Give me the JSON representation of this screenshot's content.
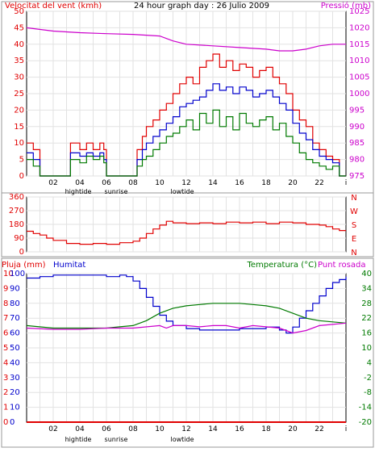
{
  "colors": {
    "frame": "#888888",
    "grid": "#e2e2e2",
    "red": "#e00000",
    "blue": "#0000cc",
    "green": "#007a00",
    "magenta": "#cc00cc",
    "black": "#000000"
  },
  "x_tick_labels": [
    "02",
    "04",
    "06",
    "08",
    "10",
    "12",
    "14",
    "16",
    "18",
    "20",
    "22",
    "i"
  ],
  "markers": {
    "hightide": "hightide",
    "sunrise": "sunrise",
    "lowtide": "lowtide"
  },
  "chart_data": [
    {
      "type": "line",
      "title": "24 hour graph day : 26 Julio 2009",
      "ylabel": "Velocitat del vent (kmh)",
      "ylabel_right": "Pressió (mb)",
      "x_unit": "hour",
      "xlim": [
        0,
        24
      ],
      "ylim": [
        0,
        50
      ],
      "y_ticks": [
        0,
        5,
        10,
        15,
        20,
        25,
        30,
        35,
        40,
        45,
        50
      ],
      "ylim_right": [
        975,
        1025
      ],
      "y_ticks_right": [
        975,
        980,
        985,
        990,
        995,
        1000,
        1005,
        1010,
        1015,
        1020,
        1025
      ],
      "series": [
        {
          "role": "wind_gust",
          "color": "#e00000",
          "axis": "left",
          "step": true,
          "x": [
            0,
            0.5,
            1,
            2,
            3,
            3.3,
            4,
            4.5,
            5,
            5.5,
            5.8,
            6,
            6.5,
            7,
            8,
            8.3,
            8.7,
            9,
            9.5,
            10,
            10.5,
            11,
            11.5,
            12,
            12.5,
            13,
            13.5,
            14,
            14.5,
            15,
            15.5,
            16,
            16.5,
            17,
            17.5,
            18,
            18.5,
            19,
            19.5,
            20,
            20.5,
            21,
            21.5,
            22,
            22.5,
            23,
            23.5
          ],
          "y": [
            10,
            8,
            0,
            0,
            0,
            10,
            8,
            10,
            8,
            10,
            8,
            0,
            0,
            0,
            0,
            8,
            12,
            15,
            17,
            20,
            22,
            25,
            28,
            30,
            28,
            33,
            35,
            37,
            33,
            35,
            32,
            34,
            33,
            30,
            32,
            33,
            30,
            28,
            25,
            20,
            17,
            15,
            10,
            8,
            6,
            5,
            0
          ]
        },
        {
          "role": "wind_avg",
          "color": "#0000cc",
          "axis": "left",
          "step": true,
          "x": [
            0,
            0.5,
            1,
            2,
            3,
            3.3,
            4,
            4.5,
            5,
            5.5,
            5.8,
            6,
            6.5,
            7,
            8,
            8.3,
            8.7,
            9,
            9.5,
            10,
            10.5,
            11,
            11.5,
            12,
            12.5,
            13,
            13.5,
            14,
            14.5,
            15,
            15.5,
            16,
            16.5,
            17,
            17.5,
            18,
            18.5,
            19,
            19.5,
            20,
            20.5,
            21,
            21.5,
            22,
            22.5,
            23,
            23.5
          ],
          "y": [
            7,
            5,
            0,
            0,
            0,
            7,
            6,
            7,
            6,
            7,
            5,
            0,
            0,
            0,
            0,
            5,
            8,
            10,
            12,
            14,
            16,
            18,
            21,
            22,
            23,
            24,
            26,
            28,
            26,
            27,
            25,
            27,
            26,
            24,
            25,
            26,
            24,
            22,
            20,
            16,
            13,
            11,
            8,
            6,
            5,
            4,
            0
          ]
        },
        {
          "role": "wind_min",
          "color": "#007a00",
          "axis": "left",
          "step": true,
          "x": [
            0,
            0.5,
            1,
            2,
            3,
            3.3,
            4,
            4.5,
            5,
            5.5,
            5.8,
            6,
            6.5,
            7,
            8,
            8.3,
            8.7,
            9,
            9.5,
            10,
            10.5,
            11,
            11.5,
            12,
            12.5,
            13,
            13.5,
            14,
            14.5,
            15,
            15.5,
            16,
            16.5,
            17,
            17.5,
            18,
            18.5,
            19,
            19.5,
            20,
            20.5,
            21,
            21.5,
            22,
            22.5,
            23,
            23.5
          ],
          "y": [
            5,
            3,
            0,
            0,
            0,
            5,
            4,
            6,
            5,
            6,
            4,
            0,
            0,
            0,
            0,
            3,
            5,
            6,
            8,
            10,
            12,
            13,
            15,
            17,
            14,
            19,
            16,
            20,
            15,
            18,
            14,
            19,
            16,
            15,
            17,
            18,
            14,
            16,
            12,
            10,
            7,
            5,
            4,
            3,
            2,
            3,
            0
          ]
        },
        {
          "role": "pressure",
          "color": "#cc00cc",
          "axis": "right",
          "step": false,
          "x": [
            0,
            2,
            4,
            6,
            8,
            10,
            11,
            12,
            14,
            16,
            18,
            19,
            20,
            21,
            22,
            23,
            24
          ],
          "y": [
            1020,
            1019,
            1018.5,
            1018.2,
            1018,
            1017.5,
            1016,
            1015,
            1014.5,
            1014,
            1013.5,
            1013,
            1013,
            1013.5,
            1014.5,
            1015,
            1015
          ]
        }
      ]
    },
    {
      "type": "line",
      "title": "",
      "x_unit": "hour",
      "xlim": [
        0,
        24
      ],
      "ylim": [
        0,
        360
      ],
      "y_ticks": [
        0,
        90,
        180,
        270,
        360
      ],
      "y_ticks_right": [
        "N",
        "E",
        "S",
        "W",
        "N"
      ],
      "series": [
        {
          "role": "wind_direction",
          "color": "#e00000",
          "step": true,
          "x": [
            0,
            0.5,
            1,
            1.5,
            2,
            3,
            4,
            5,
            6,
            7,
            8,
            8.5,
            9,
            9.5,
            10,
            10.5,
            11,
            12,
            13,
            14,
            15,
            16,
            17,
            18,
            19,
            20,
            21,
            22,
            22.5,
            23,
            23.5
          ],
          "y": [
            135,
            120,
            110,
            90,
            75,
            55,
            50,
            55,
            50,
            60,
            70,
            90,
            120,
            150,
            175,
            200,
            190,
            185,
            190,
            185,
            195,
            190,
            195,
            185,
            195,
            190,
            180,
            175,
            165,
            150,
            140
          ]
        }
      ]
    },
    {
      "type": "line",
      "title": "",
      "ylabel": "Pluja (mm)",
      "ylabel2": "Humitat",
      "ylabel_right": "Temperatura (°C)",
      "ylabel_right2": "Punt rosada",
      "x_unit": "hour",
      "xlim": [
        0,
        24
      ],
      "ylim": [
        0,
        10
      ],
      "y_ticks": [
        0,
        1,
        2,
        3,
        4,
        5,
        6,
        7,
        8,
        9,
        10
      ],
      "ylim_humidity": [
        0,
        100
      ],
      "y_ticks_humidity": [
        0,
        10,
        20,
        30,
        40,
        50,
        60,
        70,
        80,
        90,
        100
      ],
      "ylim_right": [
        -20,
        40
      ],
      "y_ticks_right": [
        -20,
        -14,
        -8,
        -2,
        4,
        10,
        16,
        22,
        28,
        34,
        40
      ],
      "series": [
        {
          "role": "humidity",
          "color": "#0000cc",
          "axis": "humidity",
          "step": true,
          "x": [
            0,
            1,
            2,
            3,
            4,
            5,
            6,
            7,
            7.5,
            8,
            8.5,
            9,
            9.5,
            10,
            10.5,
            11,
            12,
            13,
            14,
            15,
            16,
            17,
            18,
            19,
            19.5,
            20,
            20.5,
            21,
            21.5,
            22,
            22.5,
            23,
            23.5,
            24
          ],
          "y": [
            97,
            98,
            99,
            99,
            99,
            99,
            98,
            99,
            98,
            95,
            90,
            84,
            78,
            72,
            68,
            65,
            63,
            62,
            62,
            62,
            63,
            63,
            64,
            62,
            60,
            64,
            70,
            75,
            80,
            85,
            90,
            94,
            96,
            98
          ]
        },
        {
          "role": "temperature",
          "color": "#007a00",
          "axis": "right",
          "step": false,
          "x": [
            0,
            2,
            4,
            6,
            7,
            8,
            9,
            10,
            11,
            12,
            13,
            14,
            15,
            16,
            17,
            18,
            19,
            20,
            21,
            22,
            23,
            24
          ],
          "y": [
            19,
            18,
            18,
            18,
            18.5,
            19,
            21,
            24,
            26,
            27,
            27.5,
            28,
            28,
            28,
            27.5,
            27,
            26,
            24,
            22,
            21,
            20.5,
            20
          ]
        },
        {
          "role": "dew_point",
          "color": "#cc00cc",
          "axis": "right",
          "step": false,
          "x": [
            0,
            2,
            4,
            6,
            8,
            10,
            10.5,
            11,
            12,
            13,
            14,
            15,
            16,
            17,
            18,
            19,
            19.5,
            20,
            21,
            22,
            23,
            24
          ],
          "y": [
            18,
            17.5,
            17.5,
            18,
            18,
            19,
            18,
            19,
            19,
            18.5,
            19,
            19,
            18,
            19,
            18.5,
            18,
            17,
            16,
            17,
            19,
            19.5,
            20
          ]
        },
        {
          "role": "rain",
          "color": "#e00000",
          "axis": "left",
          "step": false,
          "x": [
            0,
            24
          ],
          "y": [
            0,
            0
          ]
        }
      ]
    }
  ]
}
